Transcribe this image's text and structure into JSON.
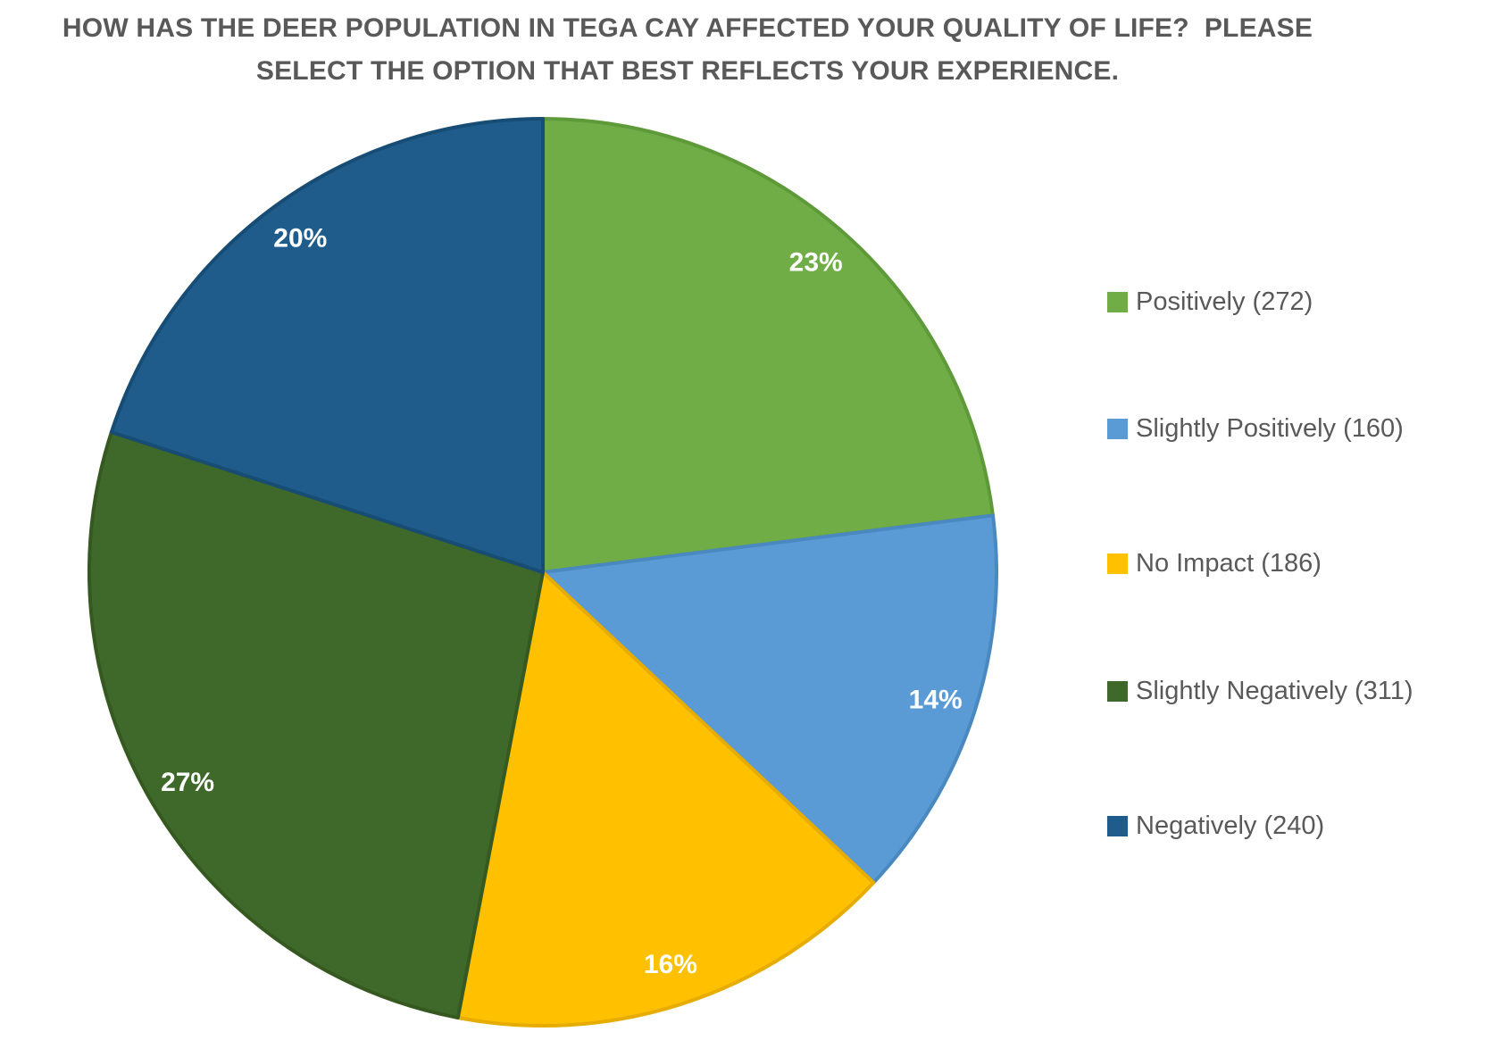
{
  "title": {
    "full_text": "HOW HAS THE DEER POPULATION IN TEGA CAY AFFECTED YOUR QUALITY OF LIFE?  PLEASE SELECT THE OPTION THAT BEST REFLECTS YOUR EXPERIENCE.",
    "lines": [
      "HOW HAS THE DEER POPULATION IN TEGA CAY AFFECTED YOUR QUALITY OF LIFE?  PLEASE",
      "SELECT THE OPTION THAT BEST REFLECTS YOUR EXPERIENCE."
    ],
    "color": "#595959"
  },
  "chart_data": {
    "type": "pie",
    "title": "HOW HAS THE DEER POPULATION IN TEGA CAY AFFECTED YOUR QUALITY OF LIFE?  PLEASE SELECT THE OPTION THAT BEST REFLECTS YOUR EXPERIENCE.",
    "legend_position": "right",
    "start_angle_deg": 0,
    "direction": "clockwise",
    "data_label_format": "percent",
    "data_label_color": "#FFFFFF",
    "legend_text_color": "#595959",
    "categories": [
      "Positively",
      "Slightly Positively",
      "No Impact",
      "Slightly Negatively",
      "Negatively"
    ],
    "values": [
      272,
      160,
      186,
      311,
      240
    ],
    "slices": [
      {
        "key": "positively",
        "label": "Positively",
        "count": 272,
        "percent": 23,
        "percent_label": "23%",
        "legend_label": "Positively (272)",
        "color": "#70AD47",
        "border_color": "#5E9A39"
      },
      {
        "key": "slightly-positively",
        "label": "Slightly Positively",
        "count": 160,
        "percent": 14,
        "percent_label": "14%",
        "legend_label": "Slightly Positively (160)",
        "color": "#5B9BD5",
        "border_color": "#4A88C0"
      },
      {
        "key": "no-impact",
        "label": "No Impact",
        "count": 186,
        "percent": 16,
        "percent_label": "16%",
        "legend_label": "No Impact (186)",
        "color": "#FFC000",
        "border_color": "#E7AC00"
      },
      {
        "key": "slightly-negatively",
        "label": "Slightly Negatively",
        "count": 311,
        "percent": 27,
        "percent_label": "27%",
        "legend_label": "Slightly Negatively (311)",
        "color": "#3F682B",
        "border_color": "#365922"
      },
      {
        "key": "negatively",
        "label": "Negatively",
        "count": 240,
        "percent": 20,
        "percent_label": "20%",
        "legend_label": "Negatively (240)",
        "color": "#1F5C8B",
        "border_color": "#174C75"
      }
    ]
  }
}
